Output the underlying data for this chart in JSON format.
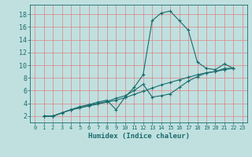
{
  "xlabel": "Humidex (Indice chaleur)",
  "bg_color": "#c0e0e0",
  "line_color": "#1a6b6b",
  "grid_color": "#e08080",
  "xlim": [
    -0.5,
    23.5
  ],
  "ylim": [
    1.0,
    19.5
  ],
  "xticks": [
    0,
    1,
    2,
    3,
    4,
    5,
    6,
    7,
    8,
    9,
    10,
    11,
    12,
    13,
    14,
    15,
    16,
    17,
    18,
    19,
    20,
    21,
    22,
    23
  ],
  "yticks": [
    2,
    4,
    6,
    8,
    10,
    12,
    14,
    16,
    18
  ],
  "seg1_x": [
    1,
    2,
    3,
    4,
    5,
    6,
    7,
    8,
    9,
    10,
    11,
    12,
    13,
    14,
    15,
    16,
    17,
    18,
    19,
    20,
    21,
    22
  ],
  "seg1_y": [
    2,
    2,
    2.5,
    3.0,
    3.5,
    3.8,
    4.2,
    4.5,
    3.0,
    5.0,
    6.5,
    8.5,
    17.0,
    18.2,
    18.5,
    17.0,
    15.5,
    10.5,
    9.5,
    9.3,
    10.2,
    9.5
  ],
  "seg2_x": [
    1,
    2,
    3,
    4,
    5,
    6,
    7,
    8,
    9,
    10,
    11,
    12,
    13,
    14,
    15,
    16,
    17,
    18,
    19,
    20,
    21,
    22
  ],
  "seg2_y": [
    2,
    2,
    2.5,
    3.0,
    3.3,
    3.7,
    4.0,
    4.3,
    4.8,
    5.2,
    6.0,
    7.0,
    5.0,
    5.2,
    5.5,
    6.5,
    7.5,
    8.2,
    8.8,
    9.0,
    9.5,
    9.5
  ],
  "seg3_x": [
    1,
    2,
    3,
    4,
    5,
    6,
    7,
    8,
    9,
    10,
    11,
    12,
    13,
    14,
    15,
    16,
    17,
    18,
    19,
    20,
    21,
    22
  ],
  "seg3_y": [
    2,
    2,
    2.5,
    3.0,
    3.3,
    3.6,
    3.9,
    4.2,
    4.5,
    4.9,
    5.4,
    5.9,
    6.4,
    6.9,
    7.3,
    7.7,
    8.1,
    8.5,
    8.8,
    9.0,
    9.3,
    9.5
  ]
}
